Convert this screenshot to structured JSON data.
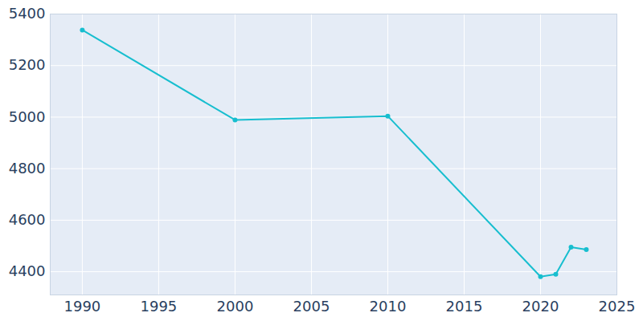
{
  "chart_data": {
    "type": "line",
    "x": [
      1990,
      2000,
      2010,
      2020,
      2021,
      2022,
      2023
    ],
    "values": [
      5338,
      4989,
      5004,
      4381,
      4390,
      4495,
      4486
    ],
    "color": "#17becf",
    "marker": "circle",
    "xlim": [
      1987.9,
      2025
    ],
    "xticks": [
      1990,
      1995,
      2000,
      2005,
      2010,
      2015,
      2020,
      2025
    ],
    "ylim": [
      4310,
      5400
    ],
    "yticks": [
      4400,
      4600,
      4800,
      5000,
      5200,
      5400
    ],
    "grid": true
  }
}
